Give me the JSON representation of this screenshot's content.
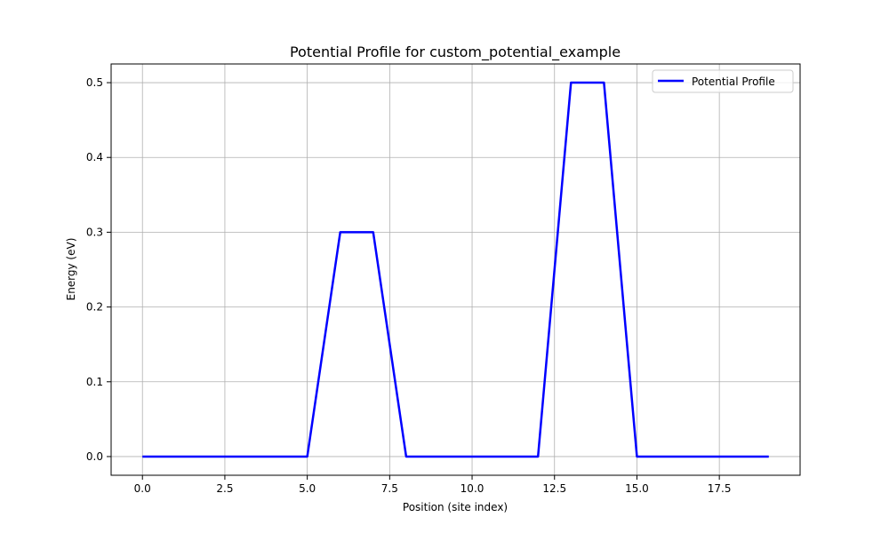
{
  "chart_data": {
    "type": "line",
    "title": "Potential Profile for custom_potential_example",
    "xlabel": "Position (site index)",
    "ylabel": "Energy (eV)",
    "xlim": [
      -0.95,
      19.95
    ],
    "ylim": [
      -0.025,
      0.525
    ],
    "x_ticks": [
      0.0,
      2.5,
      5.0,
      7.5,
      10.0,
      12.5,
      15.0,
      17.5
    ],
    "x_tick_labels": [
      "0.0",
      "2.5",
      "5.0",
      "7.5",
      "10.0",
      "12.5",
      "15.0",
      "17.5"
    ],
    "y_ticks": [
      0.0,
      0.1,
      0.2,
      0.3,
      0.4,
      0.5
    ],
    "y_tick_labels": [
      "0.0",
      "0.1",
      "0.2",
      "0.3",
      "0.4",
      "0.5"
    ],
    "grid": true,
    "legend_position": "upper right",
    "series": [
      {
        "name": "Potential Profile",
        "color": "#0000ff",
        "x": [
          0,
          1,
          2,
          3,
          4,
          5,
          6,
          7,
          8,
          9,
          10,
          11,
          12,
          13,
          14,
          15,
          16,
          17,
          18,
          19
        ],
        "y": [
          0.0,
          0.0,
          0.0,
          0.0,
          0.0,
          0.0,
          0.3,
          0.3,
          0.0,
          0.0,
          0.0,
          0.0,
          0.0,
          0.5,
          0.5,
          0.0,
          0.0,
          0.0,
          0.0,
          0.0
        ]
      }
    ]
  }
}
